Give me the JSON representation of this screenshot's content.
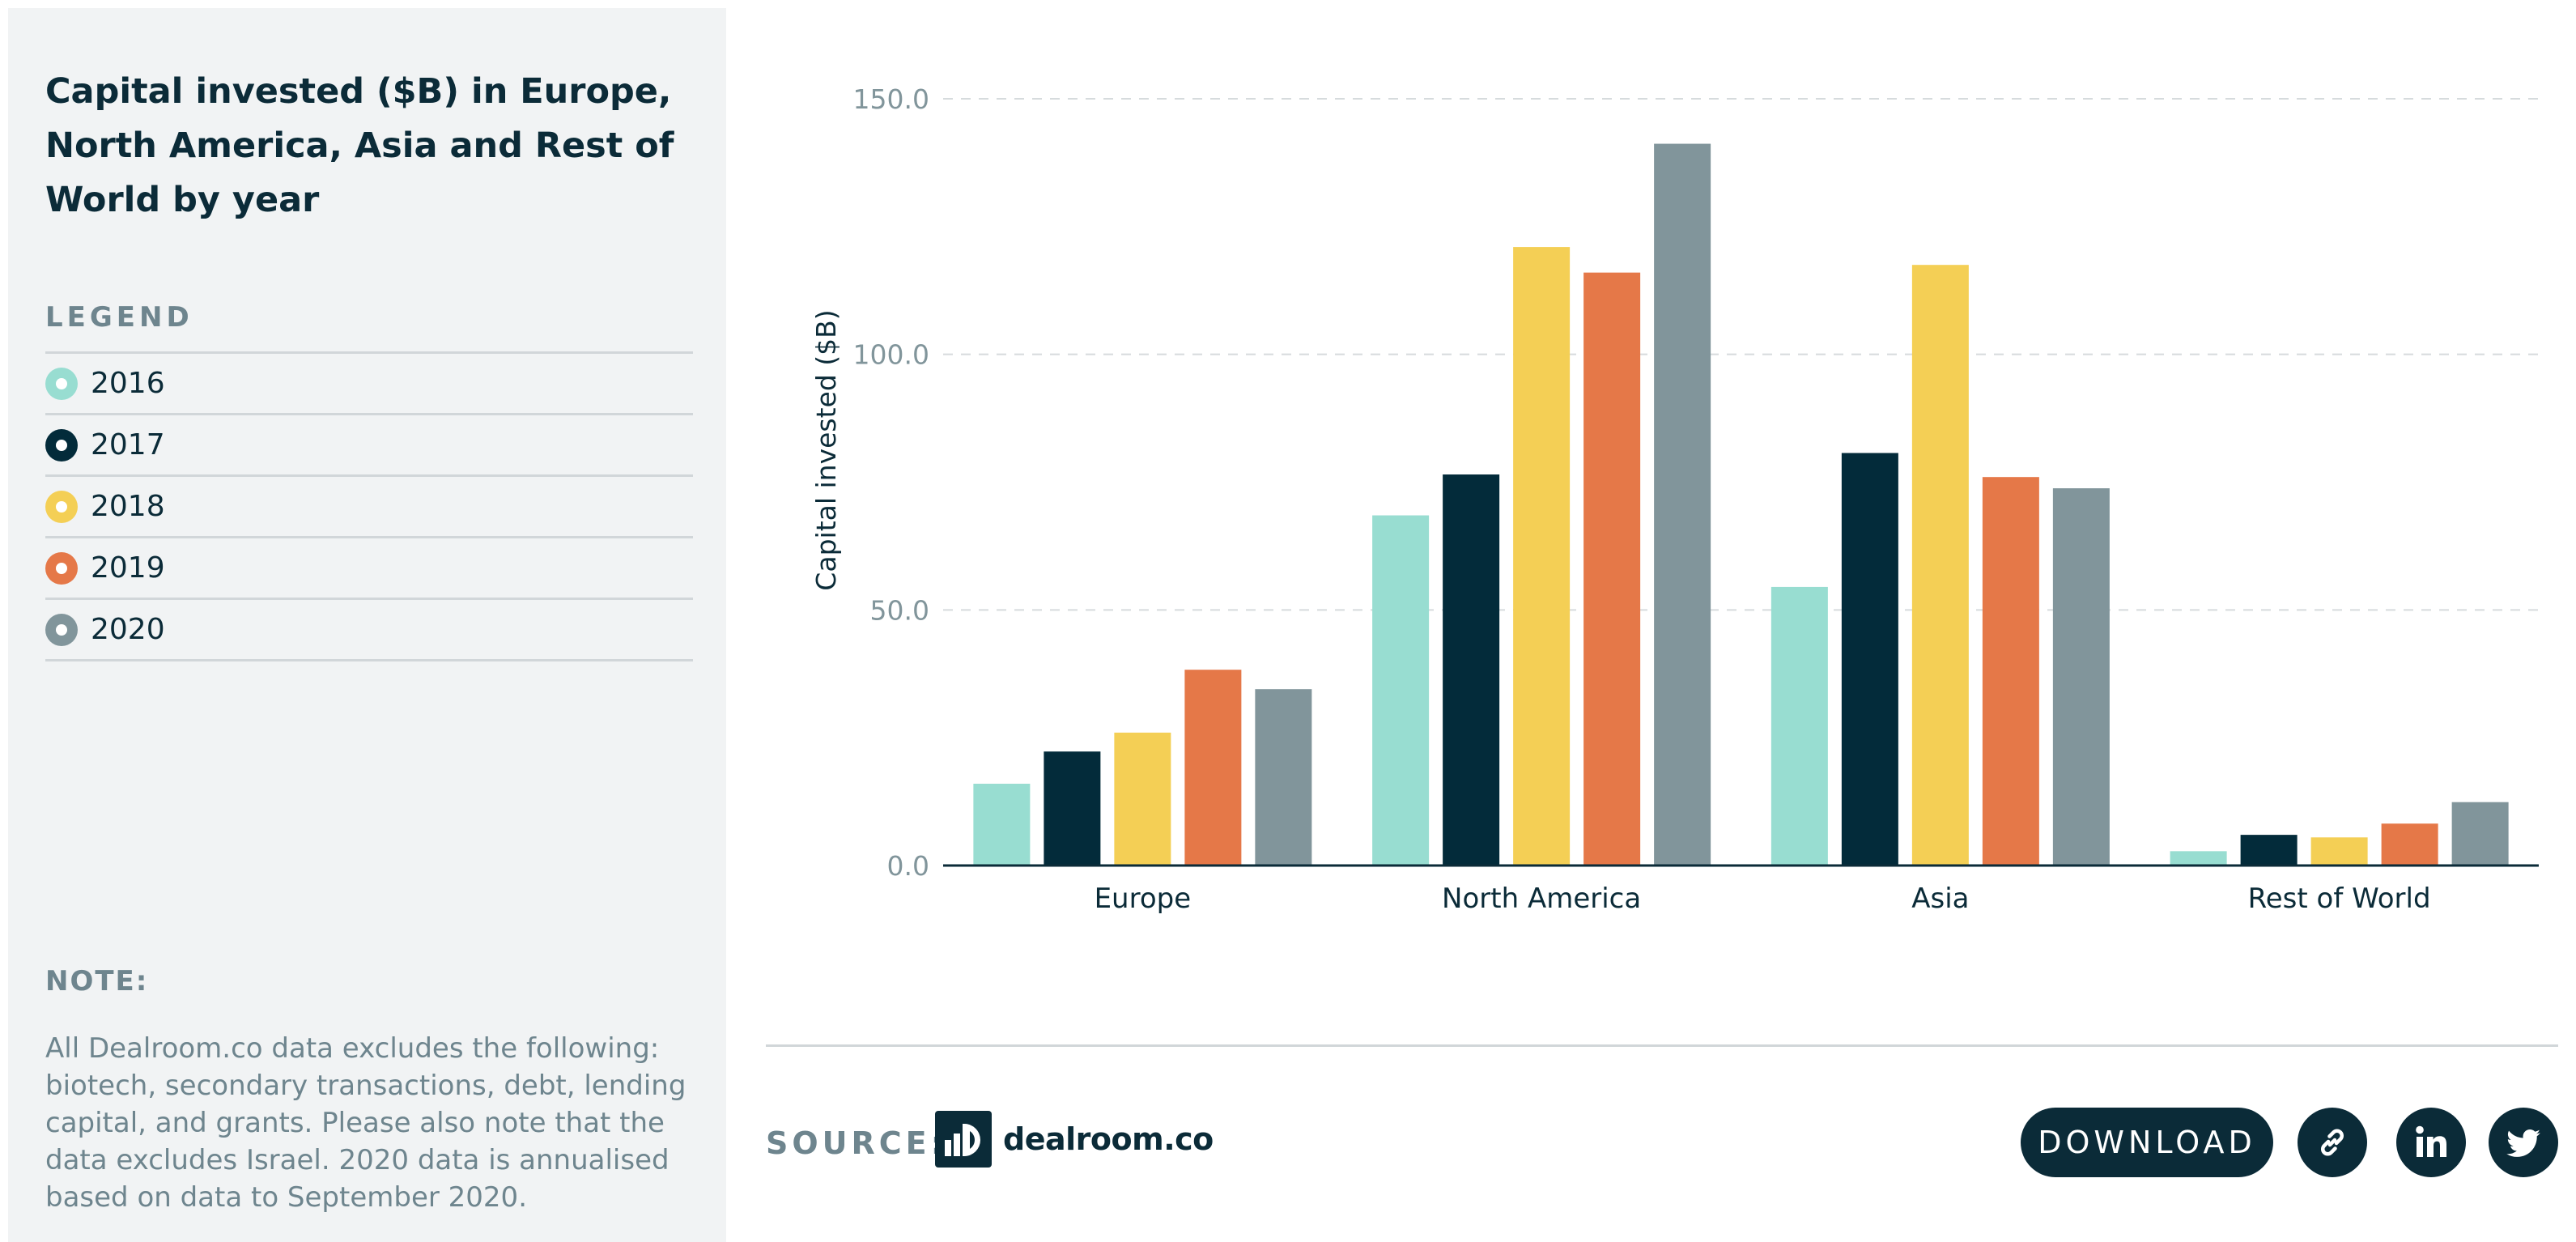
{
  "sidebar": {
    "title": "Capital invested ($B) in Europe, North America, Asia and Rest of World by year",
    "legend_heading": "LEGEND",
    "legend": [
      {
        "label": "2016",
        "color": "#98ddd1"
      },
      {
        "label": "2017",
        "color": "#032b3a"
      },
      {
        "label": "2018",
        "color": "#f4cf55"
      },
      {
        "label": "2019",
        "color": "#e57848"
      },
      {
        "label": "2020",
        "color": "#81959b"
      }
    ],
    "note_heading": "NOTE:",
    "note_text": "All Dealroom.co data excludes the following: biotech, secondary transactions, debt, lending capital, and grants. Please also note that the data excludes Israel. 2020 data is annualised based on data to September 2020."
  },
  "chart_data": {
    "type": "bar",
    "title": "Capital invested ($B) in Europe, North America, Asia and Rest of World by year",
    "xlabel": "",
    "ylabel": "Capital invested ($B)",
    "categories": [
      "Europe",
      "North America",
      "Asia",
      "Rest of World"
    ],
    "ylim": [
      0,
      150
    ],
    "yticks": [
      "0.0",
      "50.0",
      "100.0",
      "150.0"
    ],
    "grid": true,
    "legend_position": "sidebar",
    "series": [
      {
        "name": "2016",
        "color": "#98ddd1",
        "values": [
          16,
          68.5,
          54.5,
          2.8
        ]
      },
      {
        "name": "2017",
        "color": "#032b3a",
        "values": [
          22.3,
          76.5,
          80.7,
          6
        ]
      },
      {
        "name": "2018",
        "color": "#f4cf55",
        "values": [
          26,
          121,
          117.5,
          5.5
        ]
      },
      {
        "name": "2019",
        "color": "#e57848",
        "values": [
          38.3,
          116,
          76,
          8.2
        ]
      },
      {
        "name": "2020",
        "color": "#81959b",
        "values": [
          34.5,
          141.2,
          73.8,
          12.4
        ]
      }
    ]
  },
  "footer": {
    "source_label": "SOURCE:",
    "brand_name": "dealroom.co",
    "download_label": "DOWNLOAD"
  },
  "icons": {
    "link": "link-icon",
    "linkedin": "linkedin-icon",
    "twitter": "twitter-icon"
  }
}
